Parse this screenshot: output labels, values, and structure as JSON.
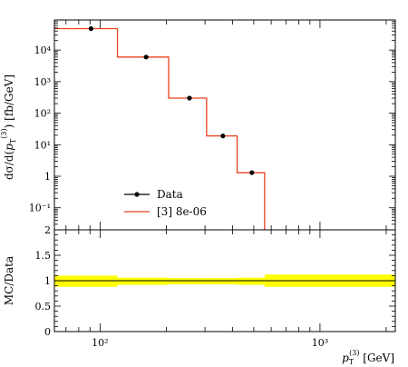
{
  "chart_data": [
    {
      "type": "line",
      "panel": "main",
      "scale": "log-log",
      "xlim": [
        62,
        2200
      ],
      "ylim": [
        0.02,
        90000
      ],
      "ylabel": "dσ/d(p_T^(3)) [fb/GeV]",
      "bin_edges": [
        62,
        120,
        205,
        305,
        420,
        560,
        2200
      ],
      "series": [
        {
          "name": "Data",
          "style": "markers",
          "color": "#000000",
          "x": [
            91,
            162,
            255,
            362,
            490
          ],
          "y": [
            48000,
            6000,
            300,
            19,
            1.3
          ]
        },
        {
          "name": "[3] 8e-06",
          "style": "histogram",
          "color": "#e8401c",
          "bin_edges": [
            62,
            120,
            205,
            305,
            420,
            560
          ],
          "values": [
            48000,
            6000,
            300,
            19,
            1.3
          ]
        }
      ],
      "y_ticks": [
        {
          "value": 0.1,
          "label": "10⁻¹"
        },
        {
          "value": 1,
          "label": "1"
        },
        {
          "value": 10,
          "label": "10¹"
        },
        {
          "value": 100,
          "label": "10²"
        },
        {
          "value": 1000,
          "label": "10³"
        },
        {
          "value": 10000,
          "label": "10⁴"
        }
      ],
      "legend_placement": "lower-left"
    },
    {
      "type": "area",
      "panel": "ratio",
      "scale": "log-x",
      "xlim": [
        62,
        2200
      ],
      "ylim": [
        0,
        2
      ],
      "ylabel": "MC/Data",
      "xlabel": "p_T^(3) [GeV]",
      "band_color": "#ffff00",
      "bin_edges": [
        62,
        120,
        205,
        305,
        420,
        560,
        2200
      ],
      "band_low": [
        0.88,
        0.92,
        0.93,
        0.93,
        0.92,
        0.88
      ],
      "band_high": [
        1.1,
        1.06,
        1.05,
        1.05,
        1.06,
        1.12
      ],
      "ratio_line": 1.0,
      "y_ticks": [
        {
          "value": 0,
          "label": "0"
        },
        {
          "value": 0.5,
          "label": "0.5"
        },
        {
          "value": 1,
          "label": "1"
        },
        {
          "value": 1.5,
          "label": "1.5"
        },
        {
          "value": 2,
          "label": "2"
        }
      ],
      "x_ticks": [
        {
          "value": 100,
          "label": "10²"
        },
        {
          "value": 1000,
          "label": "10³"
        }
      ]
    }
  ]
}
